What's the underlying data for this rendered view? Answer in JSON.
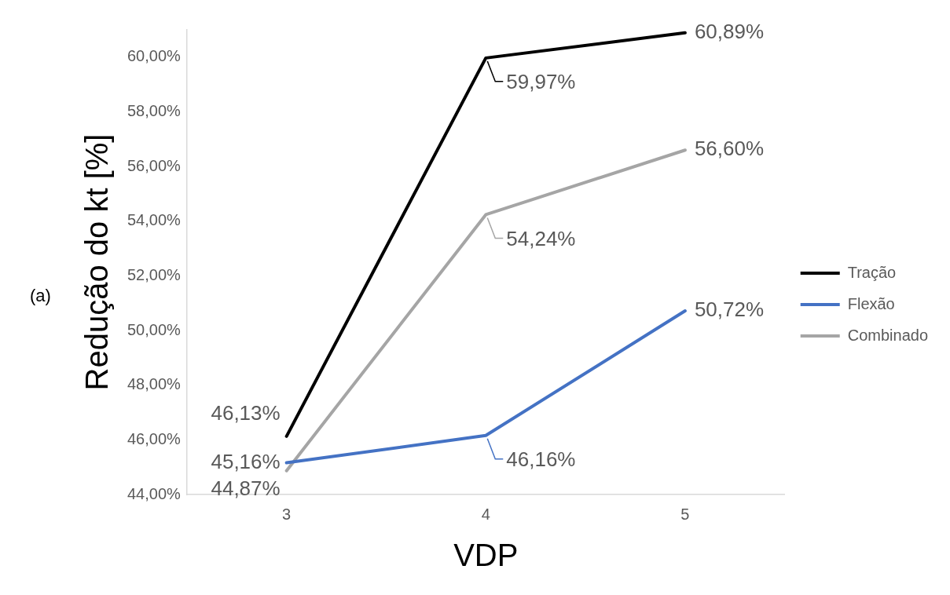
{
  "chart_data": {
    "type": "line",
    "xlabel": "VDP",
    "ylabel": "Redução do kt [%]",
    "annotations": [
      "(a)"
    ],
    "categories": [
      "3",
      "4",
      "5"
    ],
    "series": [
      {
        "name": "Tração",
        "color": "#000000",
        "values": [
          46.13,
          59.97,
          60.89
        ],
        "value_labels": [
          "46,13%",
          "59,97%",
          "60,89%"
        ]
      },
      {
        "name": "Flexão",
        "color": "#4472c4",
        "values": [
          45.16,
          46.16,
          50.72
        ],
        "value_labels": [
          "45,16%",
          "46,16%",
          "50,72%"
        ]
      },
      {
        "name": "Combinado",
        "color": "#a5a5a5",
        "values": [
          44.87,
          54.24,
          56.6
        ],
        "value_labels": [
          "44,87%",
          "54,24%",
          "56,60%"
        ]
      }
    ],
    "ylim": [
      44,
      61
    ],
    "yticks": [
      {
        "value": 44,
        "label": "44,00%"
      },
      {
        "value": 46,
        "label": "46,00%"
      },
      {
        "value": 48,
        "label": "48,00%"
      },
      {
        "value": 50,
        "label": "50,00%"
      },
      {
        "value": 52,
        "label": "52,00%"
      },
      {
        "value": 54,
        "label": "54,00%"
      },
      {
        "value": 56,
        "label": "56,00%"
      },
      {
        "value": 58,
        "label": "58,00%"
      },
      {
        "value": 60,
        "label": "60,00%"
      }
    ],
    "grid": false,
    "legend": "right",
    "marker": "none",
    "line_style": "solid"
  }
}
